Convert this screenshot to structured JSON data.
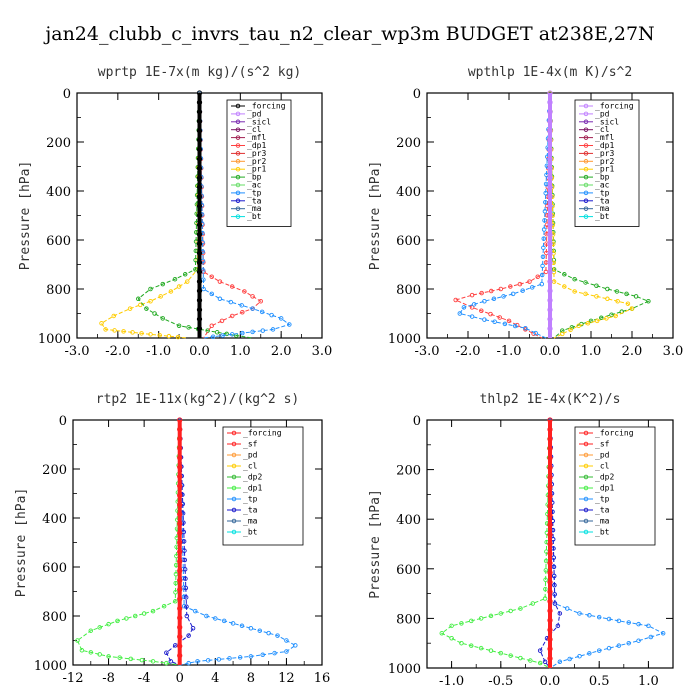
{
  "figure": {
    "title": "jan24_clubb_c_invrs_tau_n2_clear_wp3m  BUDGET at238E,27N"
  },
  "colors": {
    "_forcing_wprtp": "#000000",
    "_forcing": "#ff2020",
    "_pd": "#c080ff",
    "_sicl": "#7a2ab0",
    "_cl": "#7a1060",
    "_mfl": "#a02050",
    "_dp1": "#ff4040",
    "_pr3": "#e03030",
    "_pr2": "#ff9933",
    "_pr1": "#ffcc00",
    "_bp": "#22aa22",
    "_ac": "#66dd66",
    "_tp": "#2090ff",
    "_ta": "#1a1acc",
    "_ma": "#336699",
    "_bt": "#00e0e0",
    "_sf": "#ff2020",
    "_dp2": "#33bb33",
    "_dp1_green": "#44ee44"
  },
  "chart_data": [
    {
      "type": "line",
      "title": "wprtp   1E-7x(m kg)/(s^2 kg)",
      "ylabel": "Pressure [hPa]",
      "xlim": [
        -3,
        3
      ],
      "ylim": [
        1000,
        0
      ],
      "xticks": [
        "-3.0",
        "-2.0",
        "-1.0",
        "0.0",
        "1.0",
        "2.0",
        "3.0"
      ],
      "xtick_values": [
        -3,
        -2,
        -1,
        0,
        1,
        2,
        3
      ],
      "yticks": [
        "0",
        "200",
        "400",
        "600",
        "800",
        "1000"
      ],
      "ytick_values": [
        0,
        200,
        400,
        600,
        800,
        1000
      ],
      "legend": [
        "_forcing",
        "_pd",
        "_sicl",
        "_cl",
        "_mfl",
        "_dp1",
        "_pr3",
        "_pr2",
        "_pr1",
        "_bp",
        "_ac",
        "_tp",
        "_ta",
        "_ma",
        "_bt"
      ],
      "legend_colors": [
        "#000000",
        "#c080ff",
        "#7a2ab0",
        "#7a1060",
        "#a02050",
        "#ff4040",
        "#e03030",
        "#ff9933",
        "#ffcc00",
        "#22aa22",
        "#66dd66",
        "#2090ff",
        "#1a1acc",
        "#336699",
        "#00e0e0"
      ],
      "series": [
        {
          "name": "_pr1",
          "color": "#ffcc00",
          "x": [
            0,
            -0.05,
            -0.3,
            -0.7,
            -1.2,
            -1.7,
            -2.1,
            -2.4,
            -2.3,
            -1.2,
            -0.3
          ],
          "y": [
            0,
            720,
            770,
            810,
            850,
            880,
            910,
            940,
            965,
            985,
            1000
          ]
        },
        {
          "name": "_bp",
          "color": "#22aa22",
          "x": [
            0,
            -0.1,
            -0.6,
            -1.2,
            -1.5,
            -1.3,
            -0.9,
            -0.5,
            0.2,
            0.9,
            1.3
          ],
          "y": [
            0,
            720,
            760,
            800,
            840,
            880,
            920,
            950,
            970,
            990,
            1000
          ]
        },
        {
          "name": "_dp1",
          "color": "#ff4040",
          "x": [
            0,
            0.1,
            0.5,
            1.1,
            1.5,
            1.3,
            0.8,
            0.3,
            0.1
          ],
          "y": [
            0,
            730,
            770,
            810,
            850,
            880,
            910,
            950,
            1000
          ]
        },
        {
          "name": "_tp",
          "color": "#2090ff",
          "x": [
            0,
            0.1,
            0.5,
            1.3,
            2.0,
            2.2,
            1.8,
            0.8,
            0.1
          ],
          "y": [
            0,
            800,
            840,
            880,
            920,
            945,
            965,
            985,
            1000
          ]
        },
        {
          "name": "_forcing",
          "color": "#000000",
          "x": [
            0,
            0,
            0
          ],
          "y": [
            0,
            500,
            1000
          ]
        }
      ]
    },
    {
      "type": "line",
      "title": "wpthlp   1E-4x(m K)/s^2",
      "ylabel": "Pressure [hPa]",
      "xlim": [
        -3,
        3
      ],
      "ylim": [
        1000,
        0
      ],
      "xticks": [
        "-3.0",
        "-2.0",
        "-1.0",
        "0.0",
        "1.0",
        "2.0",
        "3.0"
      ],
      "xtick_values": [
        -3,
        -2,
        -1,
        0,
        1,
        2,
        3
      ],
      "yticks": [
        "0",
        "200",
        "400",
        "600",
        "800",
        "1000"
      ],
      "ytick_values": [
        0,
        200,
        400,
        600,
        800,
        1000
      ],
      "legend": [
        "_forcing",
        "_pd",
        "_sicl",
        "_cl",
        "_mfl",
        "_dp1",
        "_pr3",
        "_pr2",
        "_pr1",
        "_bp",
        "_ac",
        "_tp",
        "_ta",
        "_ma",
        "_bt"
      ],
      "legend_colors": [
        "#c080ff",
        "#c080ff",
        "#7a2ab0",
        "#7a1060",
        "#a02050",
        "#ff4040",
        "#e03030",
        "#ff9933",
        "#ffcc00",
        "#22aa22",
        "#66dd66",
        "#2090ff",
        "#1a1acc",
        "#336699",
        "#00e0e0"
      ],
      "series": [
        {
          "name": "_dp1",
          "color": "#ff4040",
          "x": [
            0,
            -0.1,
            -0.5,
            -1.2,
            -1.9,
            -2.3,
            -1.9,
            -1.0,
            -0.2
          ],
          "y": [
            0,
            730,
            770,
            800,
            825,
            845,
            875,
            930,
            1000
          ]
        },
        {
          "name": "_tp",
          "color": "#2090ff",
          "x": [
            0,
            -0.2,
            -0.9,
            -1.6,
            -2.1,
            -2.2,
            -1.6,
            -0.6,
            -0.1
          ],
          "y": [
            0,
            780,
            820,
            850,
            875,
            900,
            925,
            960,
            1000
          ]
        },
        {
          "name": "_bp",
          "color": "#22aa22",
          "x": [
            0,
            0.1,
            0.6,
            1.4,
            2.1,
            2.4,
            2.0,
            1.0,
            0.3,
            0.1
          ],
          "y": [
            0,
            720,
            760,
            800,
            830,
            850,
            880,
            930,
            970,
            1000
          ]
        },
        {
          "name": "_pr1",
          "color": "#ffcc00",
          "x": [
            0,
            0.1,
            0.6,
            1.4,
            1.9,
            2.0,
            1.6,
            0.7,
            0.1
          ],
          "y": [
            0,
            770,
            810,
            840,
            860,
            880,
            910,
            950,
            1000
          ]
        },
        {
          "name": "_pd",
          "color": "#c080ff",
          "x": [
            0,
            0,
            0
          ],
          "y": [
            0,
            500,
            1000
          ]
        }
      ]
    },
    {
      "type": "line",
      "title": "rtp2   1E-11x(kg^2)/(kg^2 s)",
      "ylabel": "Pressure [hPa]",
      "xlim": [
        -12,
        16
      ],
      "ylim": [
        1000,
        0
      ],
      "xticks": [
        "-12",
        "-8",
        "-4",
        "0",
        "4",
        "8",
        "12",
        "16"
      ],
      "xtick_values": [
        -12,
        -8,
        -4,
        0,
        4,
        8,
        12,
        16
      ],
      "yticks": [
        "0",
        "200",
        "400",
        "600",
        "800",
        "1000"
      ],
      "ytick_values": [
        0,
        200,
        400,
        600,
        800,
        1000
      ],
      "legend": [
        "_forcing",
        "_sf",
        "_pd",
        "_cl",
        "_dp2",
        "_dp1",
        "_tp",
        "_ta",
        "_ma",
        "_bt"
      ],
      "legend_colors": [
        "#ff2020",
        "#ff2020",
        "#ff9933",
        "#ffcc00",
        "#33bb33",
        "#44ee44",
        "#2090ff",
        "#1a1acc",
        "#336699",
        "#00e0e0"
      ],
      "series": [
        {
          "name": "_dp1",
          "color": "#44ee44",
          "x": [
            0,
            -0.5,
            -3,
            -7,
            -10,
            -11.5,
            -11,
            -8,
            -3,
            0
          ],
          "y": [
            0,
            740,
            780,
            820,
            860,
            900,
            940,
            965,
            985,
            1000
          ]
        },
        {
          "name": "_tp",
          "color": "#2090ff",
          "x": [
            0,
            0.5,
            3,
            7,
            11,
            13,
            12,
            8,
            2,
            0
          ],
          "y": [
            0,
            760,
            800,
            840,
            880,
            920,
            945,
            965,
            985,
            1000
          ]
        },
        {
          "name": "_ta",
          "color": "#1a1acc",
          "x": [
            0,
            0.8,
            1.5,
            1.0,
            -0.5,
            -1.5,
            -1.0,
            0
          ],
          "y": [
            0,
            800,
            850,
            880,
            920,
            950,
            985,
            1000
          ]
        },
        {
          "name": "_forcing",
          "color": "#ff2020",
          "x": [
            0,
            0,
            0
          ],
          "y": [
            0,
            500,
            1000
          ]
        }
      ]
    },
    {
      "type": "line",
      "title": "thlp2   1E-4x(K^2)/s",
      "ylabel": "Pressure [hPa]",
      "xlim": [
        -1.25,
        1.25
      ],
      "ylim": [
        1000,
        0
      ],
      "xticks": [
        "-1.0",
        "-0.5",
        "0.0",
        "0.5",
        "1.0"
      ],
      "xtick_values": [
        -1,
        -0.5,
        0,
        0.5,
        1
      ],
      "yticks": [
        "0",
        "200",
        "400",
        "600",
        "800",
        "1000"
      ],
      "ytick_values": [
        0,
        200,
        400,
        600,
        800,
        1000
      ],
      "legend": [
        "_forcing",
        "_sf",
        "_pd",
        "_cl",
        "_dp2",
        "_dp1",
        "_tp",
        "_ta",
        "_ma",
        "_bt"
      ],
      "legend_colors": [
        "#ff2020",
        "#ff2020",
        "#ff9933",
        "#ffcc00",
        "#33bb33",
        "#44ee44",
        "#2090ff",
        "#1a1acc",
        "#336699",
        "#00e0e0"
      ],
      "series": [
        {
          "name": "_dp1",
          "color": "#44ee44",
          "x": [
            0,
            -0.05,
            -0.3,
            -0.7,
            -1.0,
            -1.1,
            -0.9,
            -0.5,
            -0.1,
            0
          ],
          "y": [
            0,
            720,
            760,
            800,
            830,
            860,
            900,
            940,
            980,
            1000
          ]
        },
        {
          "name": "_tp",
          "color": "#2090ff",
          "x": [
            0,
            0.05,
            0.3,
            0.7,
            1.0,
            1.15,
            0.9,
            0.5,
            0.1,
            0
          ],
          "y": [
            0,
            740,
            780,
            810,
            830,
            860,
            890,
            930,
            975,
            1000
          ]
        },
        {
          "name": "_ta",
          "color": "#1a1acc",
          "x": [
            0,
            0.05,
            0.1,
            0.08,
            -0.03,
            -0.1,
            -0.05,
            0
          ],
          "y": [
            0,
            740,
            780,
            830,
            880,
            930,
            975,
            1000
          ]
        },
        {
          "name": "_forcing",
          "color": "#ff2020",
          "x": [
            0,
            0,
            0
          ],
          "y": [
            0,
            500,
            1000
          ]
        }
      ]
    }
  ]
}
